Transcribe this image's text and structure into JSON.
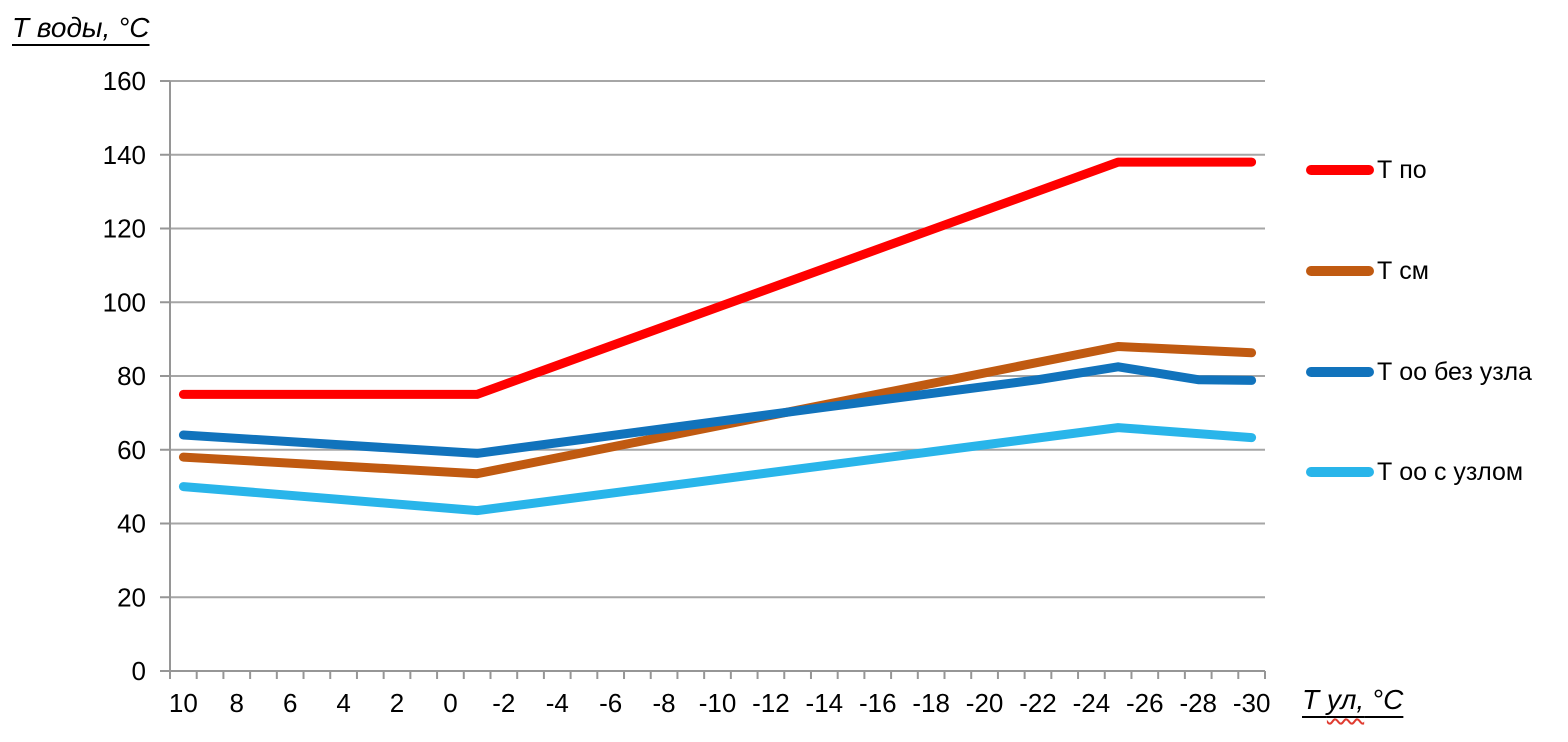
{
  "chart_data": {
    "type": "line",
    "grid": "horizontal",
    "legend_position": "right",
    "y_axis": {
      "title": "Т воды, °С",
      "min": 0,
      "max": 160,
      "step": 20,
      "tick_labels": [
        "0",
        "20",
        "40",
        "60",
        "80",
        "100",
        "120",
        "140",
        "160"
      ]
    },
    "x_axis": {
      "title": "Т ул, °С",
      "title_parts": {
        "prefix": "Т ",
        "squiggle": "ул,",
        "suffix": " °С"
      },
      "tick_labels": [
        "10",
        "8",
        "6",
        "4",
        "2",
        "0",
        "-2",
        "-4",
        "-6",
        "-8",
        "-10",
        "-12",
        "-14",
        "-16",
        "-18",
        "-20",
        "-22",
        "-24",
        "-26",
        "-28",
        "-30"
      ],
      "value_start": 10,
      "value_end": -30,
      "degrees_per_slot": 1,
      "slots": 41
    },
    "series": [
      {
        "name": "Т по",
        "color": "#ff0000",
        "stroke_width": 9,
        "points": [
          [
            10,
            75
          ],
          [
            -1,
            75
          ],
          [
            -25,
            138
          ],
          [
            -30,
            138
          ]
        ]
      },
      {
        "name": "Т см",
        "color": "#c05a11",
        "stroke_width": 9,
        "points": [
          [
            10,
            58
          ],
          [
            -1,
            53.5
          ],
          [
            -25,
            88
          ],
          [
            -30,
            86.3
          ]
        ]
      },
      {
        "name": "Т оо без узла",
        "color": "#1173bc",
        "stroke_width": 9,
        "points": [
          [
            10,
            64
          ],
          [
            -1,
            59
          ],
          [
            -14,
            71.5
          ],
          [
            -22,
            79
          ],
          [
            -25,
            82.5
          ],
          [
            -28,
            79
          ],
          [
            -30,
            78.8
          ]
        ]
      },
      {
        "name": "Т оо с узлом",
        "color": "#29b5ea",
        "stroke_width": 9,
        "points": [
          [
            10,
            50
          ],
          [
            -1,
            43.5
          ],
          [
            -25,
            66
          ],
          [
            -30,
            63.3
          ]
        ]
      }
    ],
    "colors": {
      "gridline": "#a6a6a6",
      "axis": "#969696",
      "text": "#000000",
      "spellcheck_underline": "#e03c31"
    }
  }
}
